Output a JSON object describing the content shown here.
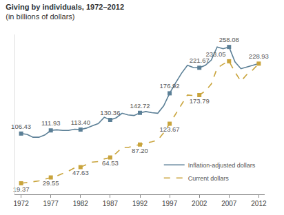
{
  "chart_data": {
    "type": "line",
    "title": "Giving by individuals, 1972–2012",
    "subtitle": "(in billions of dollars)",
    "x": [
      1972,
      1973,
      1974,
      1975,
      1976,
      1977,
      1978,
      1979,
      1980,
      1981,
      1982,
      1983,
      1984,
      1985,
      1986,
      1987,
      1988,
      1989,
      1990,
      1991,
      1992,
      1993,
      1994,
      1995,
      1996,
      1997,
      1998,
      1999,
      2000,
      2001,
      2002,
      2003,
      2004,
      2005,
      2006,
      2007,
      2008,
      2009,
      2010,
      2011,
      2012
    ],
    "series": [
      {
        "name": "Inflation-adjusted dollars",
        "color": "#5b7f96",
        "line_style": "solid",
        "marker": "square",
        "values": [
          106.43,
          105,
          100,
          100,
          104,
          111.93,
          113,
          112,
          112,
          114,
          113.4,
          116,
          120,
          124,
          135,
          130.36,
          134,
          142,
          139,
          138,
          142.72,
          145,
          143,
          142,
          155,
          176.92,
          195,
          212,
          226,
          222,
          221.67,
          226,
          235,
          258,
          255,
          258.08,
          232,
          220,
          223,
          226,
          228.93
        ],
        "value_labels": [
          "106.43",
          null,
          null,
          null,
          null,
          "111.93",
          null,
          null,
          null,
          null,
          "113.40",
          null,
          null,
          null,
          null,
          "130.36",
          null,
          null,
          null,
          null,
          "142.72",
          null,
          null,
          null,
          null,
          "176.92",
          null,
          null,
          null,
          null,
          "221.67",
          null,
          null,
          null,
          null,
          "258.08",
          null,
          null,
          null,
          null,
          null
        ]
      },
      {
        "name": "Current dollars",
        "color": "#c9a43c",
        "line_style": "dash",
        "marker": "square",
        "values": [
          19.37,
          20.5,
          21.5,
          23.5,
          26.5,
          29.55,
          32.1,
          36.6,
          40.7,
          46.4,
          47.63,
          52.1,
          56.5,
          57.4,
          62,
          64.53,
          72,
          82,
          82,
          85,
          87.2,
          90,
          92,
          95,
          108,
          123.67,
          141,
          157,
          174,
          173,
          173.79,
          181,
          193,
          221,
          228,
          233.05,
          214,
          198,
          210,
          218,
          228.93
        ],
        "value_labels": [
          "19.37",
          null,
          null,
          null,
          null,
          "29.55",
          null,
          null,
          null,
          null,
          "47.63",
          null,
          null,
          null,
          null,
          "64.53",
          null,
          null,
          null,
          null,
          "87.20",
          null,
          null,
          null,
          null,
          "123.67",
          null,
          null,
          null,
          null,
          "173.79",
          null,
          null,
          null,
          null,
          "233.05",
          null,
          null,
          null,
          null,
          "228.93"
        ]
      }
    ],
    "xlim": [
      1971,
      2013
    ],
    "xticks": [
      1972,
      1977,
      1982,
      1987,
      1992,
      1997,
      2002,
      2007,
      2012
    ],
    "ylim": [
      0,
      280
    ],
    "tick_labels": "x",
    "grid": false,
    "legend": "lower right",
    "data_labels": true
  }
}
